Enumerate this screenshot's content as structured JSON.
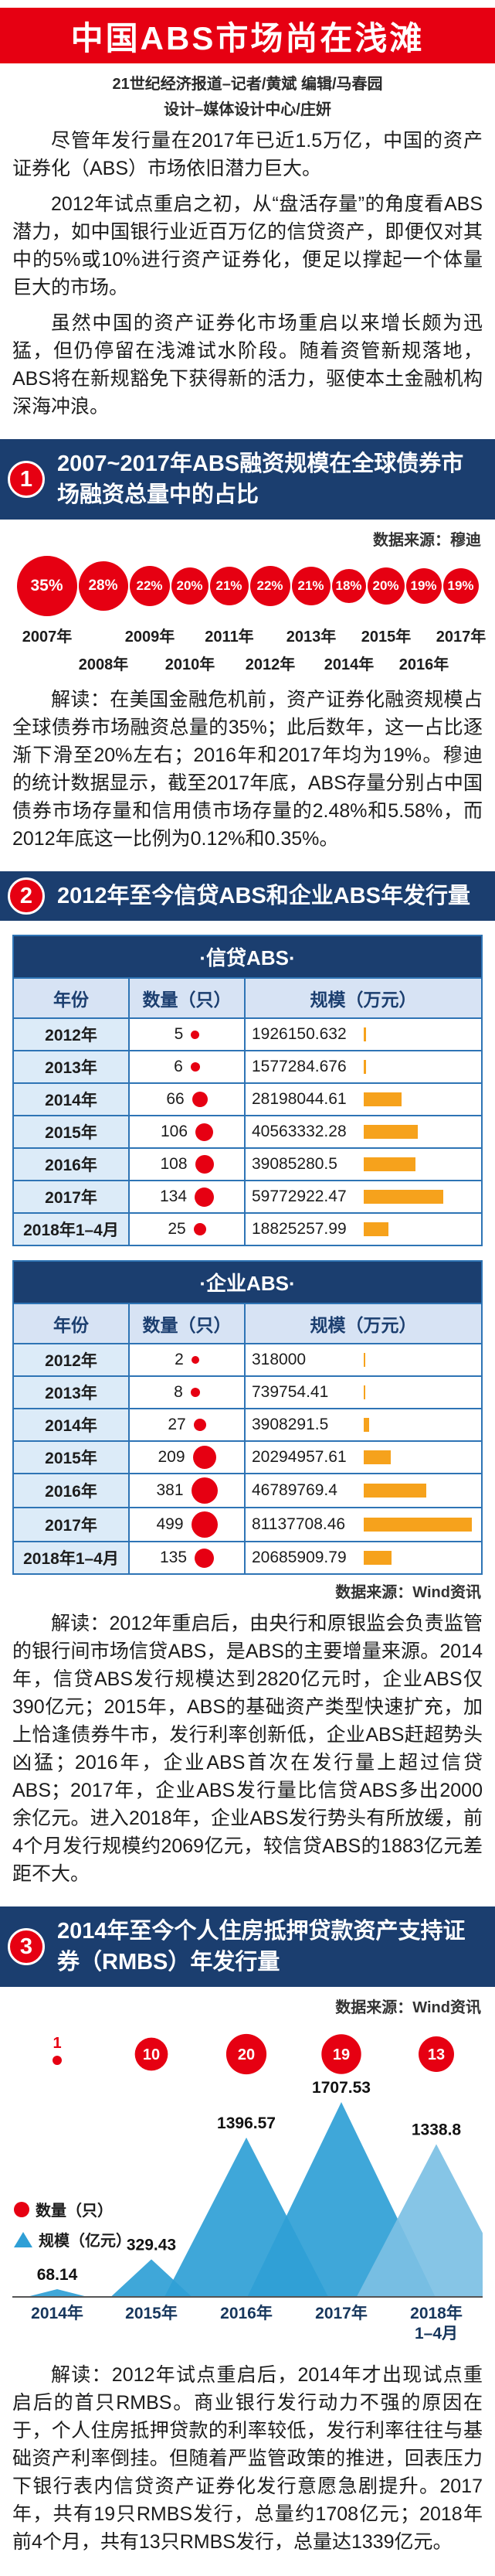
{
  "header": {
    "title": "中国ABS市场尚在浅滩",
    "byline": "21世纪经济报道–记者/黄斌  编辑/马春园",
    "design_credit": "设计–媒体设计中心/庄妍"
  },
  "intro_paragraphs": [
    "尽管年发行量在2017年已近1.5万亿，中国的资产证券化（ABS）市场依旧潜力巨大。",
    "2012年试点重启之初，从“盘活存量”的角度看ABS潜力，如中国银行业近百万亿的信贷资产，即便仅对其中的5%或10%进行资产证券化，便足以撑起一个体量巨大的市场。",
    "虽然中国的资产证券化市场重启以来增长颇为迅猛，但仍停留在浅滩试水阶段。随着资管新规落地，ABS将在新规豁免下获得新的活力，驱使本土金融机构深海冲浪。"
  ],
  "sections": [
    {
      "number": "1",
      "title": "2007~2017年ABS融资规模在全球债券市场融资总量中的占比",
      "source": "数据来源：穆迪",
      "commentary": "解读：在美国金融危机前，资产证券化融资规模占全球债券市场融资总量的35%；此后数年，这一占比逐渐下滑至20%左右；2016年和2017年均为19%。穆迪的统计数据显示，截至2017年底，ABS存量分别占中国债券市场存量和信用债市场存量的2.48%和5.58%，而2012年底这一比例为0.12%和0.35%。"
    },
    {
      "number": "2",
      "title": "2012年至今信贷ABS和企业ABS年发行量",
      "source": "数据来源：Wind资讯",
      "commentary": "解读：2012年重启后，由央行和原银监会负责监管的银行间市场信贷ABS，是ABS的主要增量来源。2014年，信贷ABS发行规模达到2820亿元时，企业ABS仅390亿元；2015年，ABS的基础资产类型快速扩充，加上恰逢债券牛市，发行利率创新低，企业ABS赶超势头凶猛；2016年，企业ABS首次在发行量上超过信贷ABS；2017年，企业ABS发行量比信贷ABS多出2000余亿元。进入2018年，企业ABS发行势头有所放缓，前4个月发行规模约2069亿元，较信贷ABS的1883亿元差距不大。"
    },
    {
      "number": "3",
      "title": "2014年至今个人住房抵押贷款资产支持证券（RMBS）年发行量",
      "source": "数据来源：Wind资讯",
      "commentary": "解读：2012年试点重启后，2014年才出现试点重启后的首只RMBS。商业银行发行动力不强的原因在于，个人住房抵押贷款的利率较低，发行利率往往与基础资产利率倒挂。但随着严监管政策的推进，回表压力下银行表内信贷资产证券化发行意愿急剧提升。2017年，共有19只RMBS发行，总量约1708亿元；2018年前4个月，共有13只RMBS发行，总量达1339亿元。"
    }
  ],
  "chart_data": [
    {
      "id": "abs-share-of-global-bond-market",
      "type": "scatter",
      "style": "bubble-row",
      "title": "2007~2017年ABS融资规模在全球债券市场融资总量中的占比",
      "categories": [
        "2007年",
        "2008年",
        "2009年",
        "2010年",
        "2011年",
        "2012年",
        "2013年",
        "2014年",
        "2015年",
        "2016年",
        "2017年"
      ],
      "values": [
        35,
        28,
        22,
        20,
        21,
        22,
        21,
        18,
        20,
        19,
        19
      ],
      "unit": "%",
      "bubble_color": "#e60012",
      "source": "数据来源：穆迪"
    },
    {
      "id": "credit-abs-issuance",
      "type": "table",
      "title_display": "·信贷ABS·",
      "columns": [
        "年份",
        "数量（只）",
        "规模（万元）"
      ],
      "rows": [
        [
          "2012年",
          5,
          "1926150.632"
        ],
        [
          "2013年",
          6,
          "1577284.676"
        ],
        [
          "2014年",
          66,
          "28198044.61"
        ],
        [
          "2015年",
          106,
          "40563332.28"
        ],
        [
          "2016年",
          108,
          "39085280.5"
        ],
        [
          "2017年",
          134,
          "59772922.47"
        ],
        [
          "2018年1–4月",
          25,
          "18825257.99"
        ]
      ]
    },
    {
      "id": "enterprise-abs-issuance",
      "type": "table",
      "title_display": "·企业ABS·",
      "columns": [
        "年份",
        "数量（只）",
        "规模（万元）"
      ],
      "rows": [
        [
          "2012年",
          2,
          "318000"
        ],
        [
          "2013年",
          8,
          "739754.41"
        ],
        [
          "2014年",
          27,
          "3908291.5"
        ],
        [
          "2015年",
          209,
          "20294957.61"
        ],
        [
          "2016年",
          381,
          "46789769.4"
        ],
        [
          "2017年",
          499,
          "81137708.46"
        ],
        [
          "2018年1–4月",
          135,
          "20685909.79"
        ]
      ]
    },
    {
      "id": "rmbs-annual-issuance",
      "type": "area",
      "style": "triangle-peaks",
      "title": "2014年至今个人住房抵押贷款资产支持证券（RMBS）年发行量",
      "categories": [
        "2014年",
        "2015年",
        "2016年",
        "2017年",
        "2018年\n1–4月"
      ],
      "series": [
        {
          "name": "数量（只）",
          "values": [
            1,
            10,
            20,
            19,
            13
          ],
          "color": "#e60012"
        },
        {
          "name": "规模（亿元）",
          "values": [
            68.14,
            329.43,
            1396.57,
            1707.53,
            1338.8
          ],
          "color": "#2f9fd6"
        }
      ],
      "legend_position": "middle-left",
      "source": "数据来源：Wind资讯"
    }
  ],
  "colors": {
    "accent_red": "#e60012",
    "navy": "#1b3e6f",
    "table_border": "#2e74b5",
    "table_year_bg": "#dcebf8",
    "table_header_bg": "#d7e3f4",
    "bar_orange": "#f6a21c",
    "peak_blue": "#2f9fd6",
    "peak_blue_light": "#7cc0e4"
  }
}
